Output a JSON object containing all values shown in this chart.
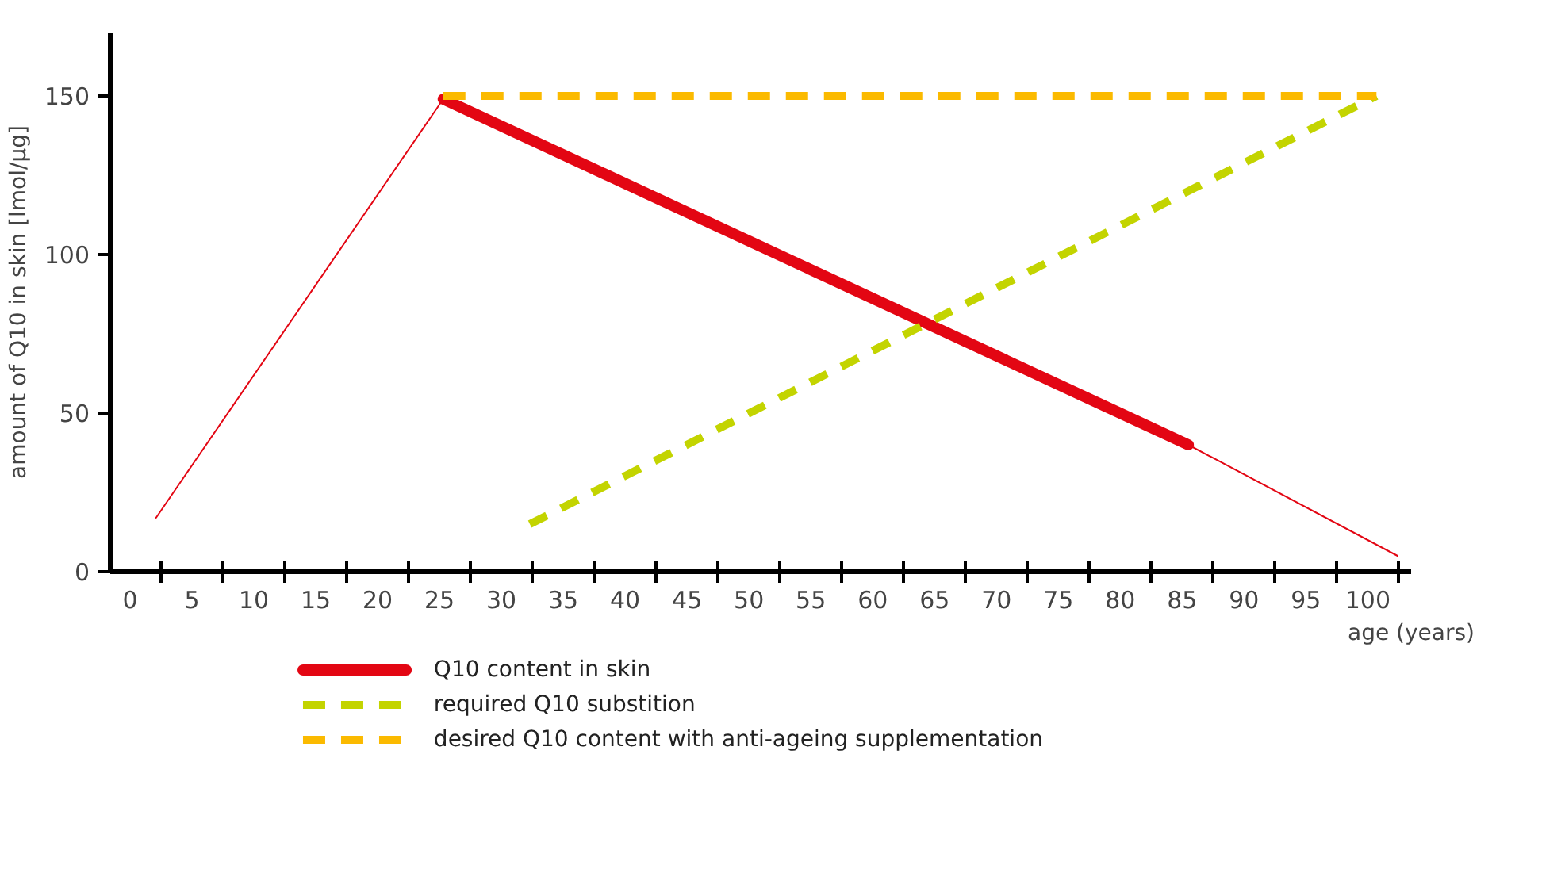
{
  "chart_data": {
    "type": "line",
    "xlabel": "age (years)",
    "ylabel": "amount of Q10 in skin [lmol/µg]",
    "xlim": [
      -1.6,
      103.5
    ],
    "ylim": [
      0,
      170
    ],
    "xticks": [
      0,
      5,
      10,
      15,
      20,
      25,
      30,
      35,
      40,
      45,
      50,
      55,
      60,
      65,
      70,
      75,
      80,
      85,
      90,
      95,
      100,
      {
        "value": 2.5,
        "label": null
      },
      {
        "value": 7.5,
        "label": null
      },
      {
        "value": 12.5,
        "label": null
      },
      {
        "value": 17.5,
        "label": null
      },
      {
        "value": 22.5,
        "label": null
      },
      {
        "value": 27.5,
        "label": null
      },
      {
        "value": 32.5,
        "label": null
      },
      {
        "value": 37.5,
        "label": null
      },
      {
        "value": 42.5,
        "label": null
      },
      {
        "value": 47.5,
        "label": null
      },
      {
        "value": 52.5,
        "label": null
      },
      {
        "value": 57.5,
        "label": null
      },
      {
        "value": 62.5,
        "label": null
      },
      {
        "value": 67.5,
        "label": null
      },
      {
        "value": 72.5,
        "label": null
      },
      {
        "value": 77.5,
        "label": null
      },
      {
        "value": 82.5,
        "label": null
      },
      {
        "value": 87.5,
        "label": null
      },
      {
        "value": 92.5,
        "label": null
      },
      {
        "value": 97.5,
        "label": null
      },
      {
        "value": 102.5,
        "label": null
      }
    ],
    "yticks": [
      0,
      50,
      100,
      150
    ],
    "grid": false,
    "legend": "bottom",
    "marker": "none",
    "series": [
      {
        "color": "#e30613",
        "x": [
          2.1,
          25.3
        ],
        "values": [
          17,
          149
        ],
        "line_style": "solid"
      },
      {
        "color": "#e30613",
        "x": [
          85.5,
          102.4
        ],
        "values": [
          40,
          5
        ],
        "line_style": "solid"
      },
      {
        "name": "Q10 content in skin",
        "color": "#e30613",
        "x": [
          25.3,
          85.5
        ],
        "values": [
          149,
          40
        ],
        "line_style": "solid"
      },
      {
        "name": "required Q10 substition",
        "color": "#c3d400",
        "x": [
          32.3,
          100.7
        ],
        "values": [
          15,
          150
        ],
        "line_style": "dashed"
      },
      {
        "name": "desired Q10 content with anti-ageing supplementation",
        "color": "#fbba00",
        "x": [
          25.3,
          100.7
        ],
        "values": [
          150,
          150
        ],
        "line_style": "dashed"
      }
    ]
  }
}
